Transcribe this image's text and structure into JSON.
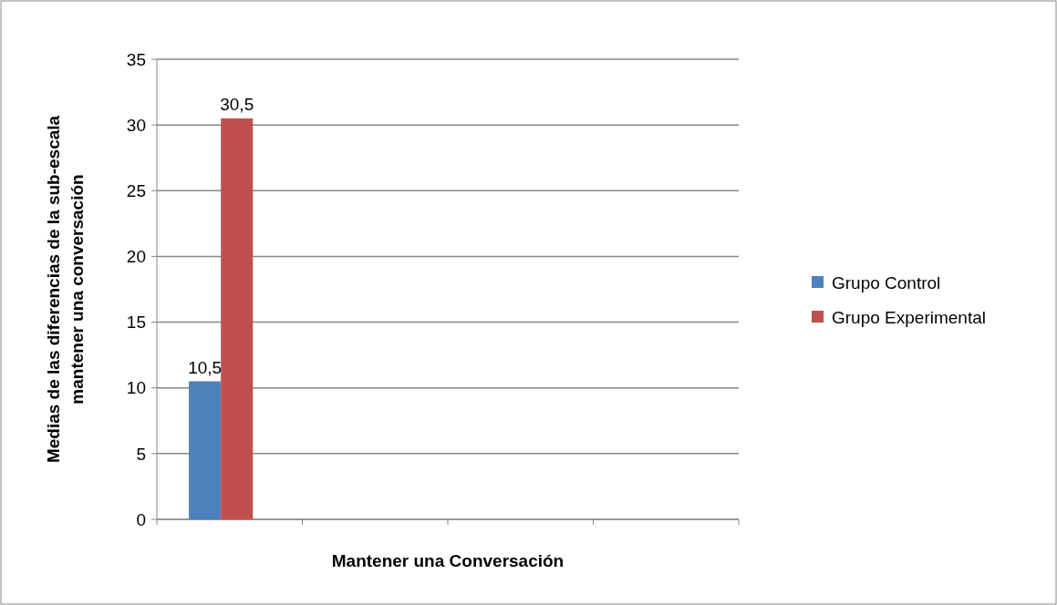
{
  "chart_data": {
    "type": "bar",
    "xlabel": "Mantener una Conversación",
    "ylabel": "Medias de las diferencias de la sub-escala\nmantener una conversación",
    "categories": [
      null,
      null,
      null,
      null
    ],
    "series": [
      {
        "name": "Grupo Control",
        "color": "#4f81bd",
        "values": [
          10.5,
          null,
          null,
          null
        ],
        "value_labels": [
          "10,5",
          null,
          null,
          null
        ]
      },
      {
        "name": "Grupo Experimental",
        "color": "#c0504d",
        "values": [
          30.5,
          null,
          null,
          null
        ],
        "value_labels": [
          "30,5",
          null,
          null,
          null
        ]
      }
    ],
    "ylim": [
      0,
      35
    ],
    "yticks": [
      0,
      5,
      10,
      15,
      20,
      25,
      30,
      35
    ],
    "grid": "y",
    "legend": "right"
  }
}
